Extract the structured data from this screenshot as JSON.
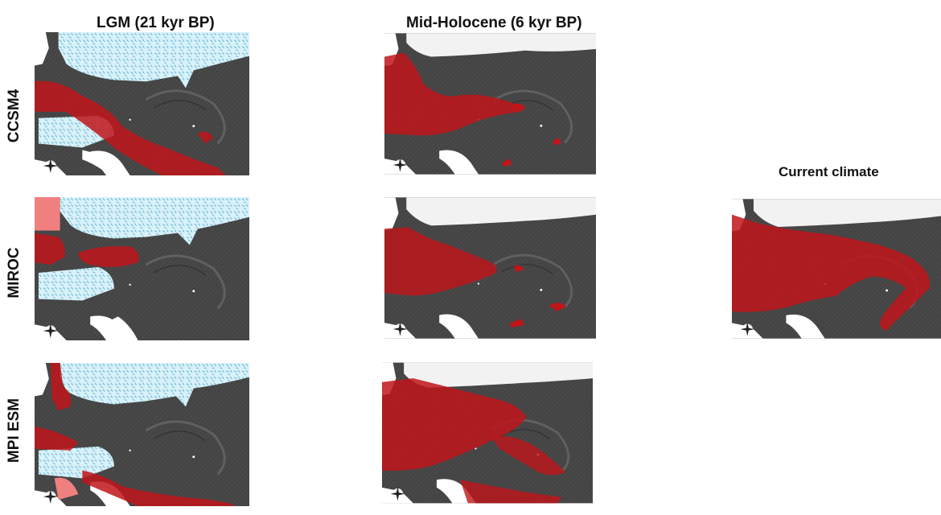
{
  "columns": {
    "lgm": "LGM (21 kyr BP)",
    "mid_holocene": "Mid-Holocene (6 kyr BP)",
    "current": "Current climate"
  },
  "rows": {
    "ccsm4": "CCSM4",
    "miroc": "MIROC",
    "mpi_esm": "MPI ESM"
  },
  "colors": {
    "terrain": "#4a4a4a",
    "suitable_habitat": "#c0151a",
    "ice_sheet": "#bfe6f3",
    "water_white": "#ffffff"
  },
  "icons": [
    "compass-rose-icon",
    "scale-bar-icon"
  ]
}
